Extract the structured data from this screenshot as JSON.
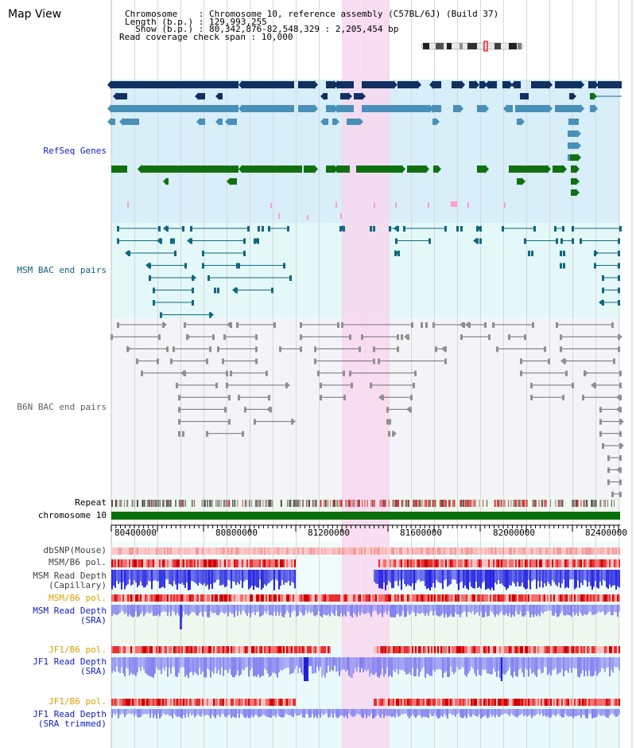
{
  "header": {
    "title": "Map View",
    "info_lines": [
      "Chromosome    : Chromosome 10, reference assembly (C57BL/6J) (Build 37)",
      "Length (b.p.) : 129,993,255",
      "  Show (b.p.) : 80,342,876-82,548,329 : 2,205,454 bp",
      "Read coverage check span : 10,000"
    ]
  },
  "tracks": {
    "refseq": "RefSeq Genes",
    "msm_bac": "MSM BAC end pairs",
    "b6n_bac": "B6N BAC end pairs",
    "repeat": "Repeat",
    "chromosome": "chromosome 10",
    "dbsnp": "dbSNP(Mouse)",
    "msm_b6_pol_1": "MSM/B6 pol.",
    "msm_depth_cap": "MSM Read Depth\n(Capillary)",
    "msm_b6_pol_2": "MSM/B6 pol.",
    "msm_depth_sra": "MSM Read Depth\n(SRA)",
    "jf1_b6_pol_1": "JF1/B6 pol.",
    "jf1_depth_sra": "JF1 Read Depth\n(SRA)",
    "jf1_b6_pol_2": "JF1/B6 pol.",
    "jf1_depth_trim": "JF1 Read Depth\n(SRA trimmed)"
  },
  "axis": {
    "ticks": [
      "80400000",
      "80800000",
      "81200000",
      "81600000",
      "82000000",
      "82400000"
    ]
  },
  "colors": {
    "refseq_bg": "#d8eef8",
    "msm_bg": "#e4f8f8",
    "b6n_bg": "#f4f4f8",
    "highlight": "#f8d8f0",
    "dark_blue": "#103060",
    "mid_blue": "#4890b8",
    "green": "#107010",
    "teal": "#106880",
    "gray": "#707070",
    "depth_dark": "#2020e0",
    "depth_light": "#8080f0"
  }
}
